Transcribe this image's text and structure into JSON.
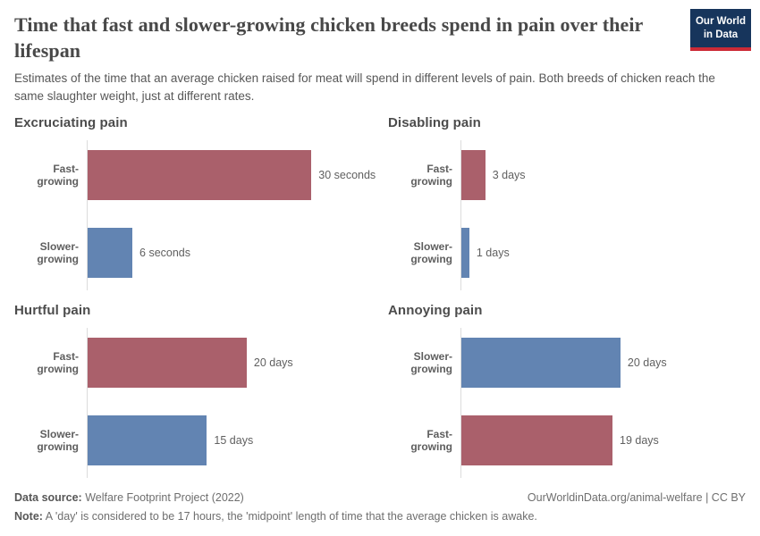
{
  "header": {
    "title": "Time that fast and slower-growing chicken breeds spend in pain over their lifespan",
    "subtitle": "Estimates of the time that an average chicken raised for meat will spend in different levels of pain. Both breeds of chicken reach the same slaughter weight, just at different rates.",
    "logo": {
      "line1": "Our World",
      "line2": "in Data"
    }
  },
  "colors": {
    "fast_growing": "#aa606b",
    "slower_growing": "#6284b2",
    "axis_line": "#dcdcdc",
    "logo_background": "#17355c",
    "logo_underline": "#cc2a36"
  },
  "chart_data": [
    {
      "type": "bar",
      "title": "Excruciating pain",
      "orientation": "horizontal",
      "unit": "seconds",
      "axis_max": 38.6,
      "grid": false,
      "bars": [
        {
          "label": "Fast-growing",
          "value": 30,
          "value_label": "30 seconds",
          "color": "#aa606b"
        },
        {
          "label": "Slower-growing",
          "value": 6,
          "value_label": "6 seconds",
          "color": "#6284b2"
        }
      ]
    },
    {
      "type": "bar",
      "title": "Disabling pain",
      "orientation": "horizontal",
      "unit": "days",
      "axis_max": 36.2,
      "grid": false,
      "bars": [
        {
          "label": "Fast-growing",
          "value": 3,
          "value_label": "3 days",
          "color": "#aa606b"
        },
        {
          "label": "Slower-growing",
          "value": 1,
          "value_label": "1 days",
          "color": "#6284b2"
        }
      ]
    },
    {
      "type": "bar",
      "title": "Hurtful pain",
      "orientation": "horizontal",
      "unit": "days",
      "axis_max": 36.2,
      "grid": false,
      "bars": [
        {
          "label": "Fast-growing",
          "value": 20,
          "value_label": "20 days",
          "color": "#aa606b"
        },
        {
          "label": "Slower-growing",
          "value": 15,
          "value_label": "15 days",
          "color": "#6284b2"
        }
      ]
    },
    {
      "type": "bar",
      "title": "Annoying pain",
      "orientation": "horizontal",
      "unit": "days",
      "axis_max": 36.2,
      "grid": false,
      "bars": [
        {
          "label": "Slower-growing",
          "value": 20,
          "value_label": "20 days",
          "color": "#6284b2"
        },
        {
          "label": "Fast-growing",
          "value": 19,
          "value_label": "19 days",
          "color": "#aa606b"
        }
      ]
    }
  ],
  "footer": {
    "source_label": "Data source:",
    "source_text": " Welfare Footprint Project (2022)",
    "rights": "OurWorldinData.org/animal-welfare | CC BY",
    "note_label": "Note:",
    "note_text": " A 'day' is considered to be 17 hours, the 'midpoint' length of time that the average chicken is awake."
  }
}
